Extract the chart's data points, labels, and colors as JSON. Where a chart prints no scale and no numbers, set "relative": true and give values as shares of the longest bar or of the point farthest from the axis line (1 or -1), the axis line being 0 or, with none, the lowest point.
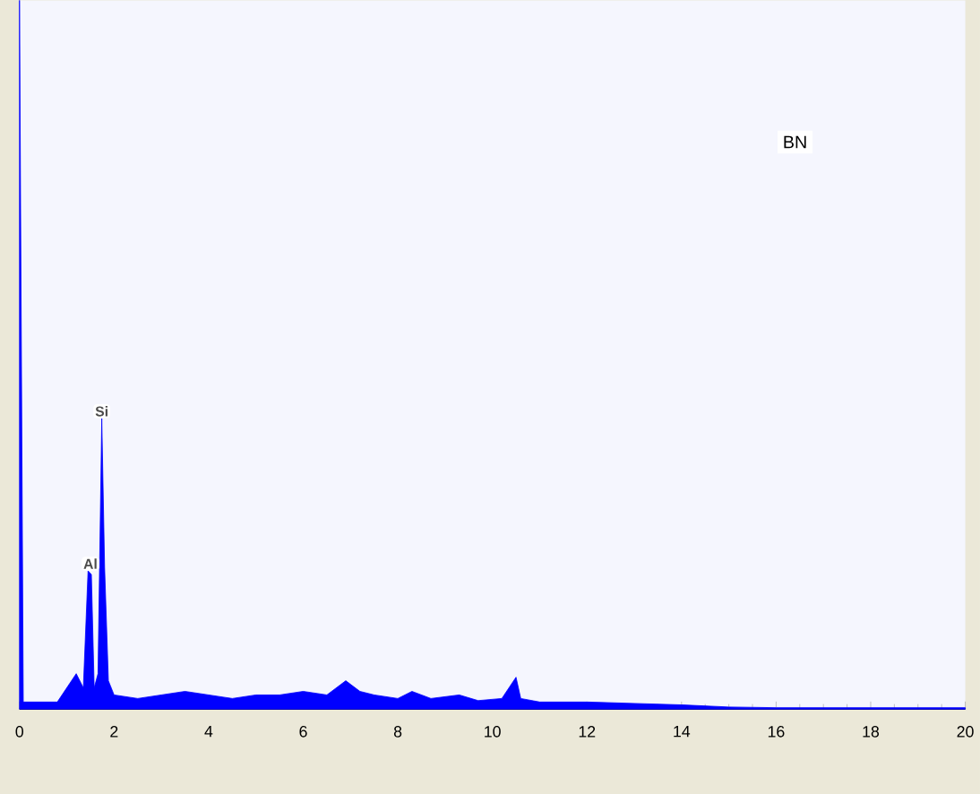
{
  "chart_data": {
    "type": "area",
    "relative": true,
    "color": "#0000ff",
    "x": [
      0,
      0.08,
      0.8,
      1.0,
      1.2,
      1.35,
      1.45,
      1.52,
      1.58,
      1.66,
      1.74,
      1.8,
      1.88,
      2.0,
      2.5,
      3,
      3.5,
      4,
      4.5,
      5,
      5.5,
      6,
      6.5,
      6.9,
      7.2,
      7.5,
      8,
      8.3,
      8.7,
      9.3,
      9.7,
      10.2,
      10.5,
      10.6,
      11,
      12,
      13,
      14,
      15,
      16,
      20
    ],
    "values": [
      1,
      0.01,
      0.01,
      0.03,
      0.05,
      0.03,
      0.195,
      0.19,
      0.03,
      0.05,
      0.41,
      0.2,
      0.04,
      0.02,
      0.015,
      0.02,
      0.025,
      0.02,
      0.015,
      0.02,
      0.02,
      0.025,
      0.02,
      0.04,
      0.025,
      0.02,
      0.015,
      0.025,
      0.015,
      0.02,
      0.012,
      0.015,
      0.045,
      0.015,
      0.01,
      0.01,
      0.008,
      0.006,
      0.003,
      0.002,
      0.002
    ],
    "xlim": [
      0,
      20
    ],
    "xticks": [
      0,
      2,
      4,
      6,
      8,
      10,
      12,
      14,
      16,
      18,
      20
    ],
    "annotations": [
      {
        "text": "Si",
        "x": 1.74,
        "y": 0.41
      },
      {
        "text": "Al",
        "x": 1.5,
        "y": 0.195
      },
      "BN"
    ]
  }
}
